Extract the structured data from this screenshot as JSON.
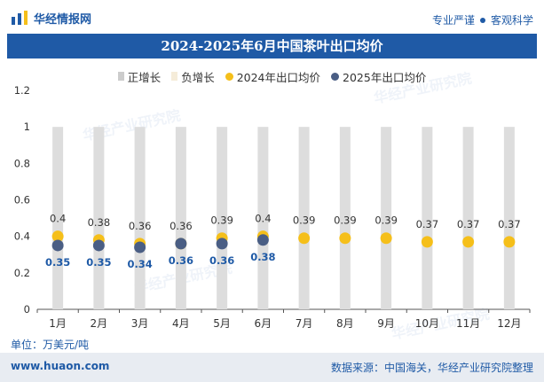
{
  "header": {
    "brand": "华经情报网",
    "tagline_left": "专业严谨",
    "tagline_right": "客观科学"
  },
  "watermark_text": "华经产业研究院",
  "footer": {
    "unit": "单位：万美元/吨",
    "site": "www.huaon.com",
    "source": "数据来源：中国海关，华经产业研究院整理"
  },
  "colors": {
    "brand_blue": "#1f5aa6",
    "bar_positive": "#dddddd",
    "bar_negative": "#f5ecd9",
    "dot_2024": "#f5bf1a",
    "dot_2025": "#4a5e84",
    "gridline": "#e6e6e6"
  },
  "chart_data": {
    "type": "bar",
    "title": "2024-2025年6月中国茶叶出口均价",
    "xlabel": "",
    "ylabel": "",
    "ylim": [
      0,
      1.2
    ],
    "yticks": [
      "0",
      "0.2",
      "0.4",
      "0.6",
      "0.8",
      "1",
      "1.2"
    ],
    "categories": [
      "1月",
      "2月",
      "3月",
      "4月",
      "5月",
      "6月",
      "7月",
      "8月",
      "9月",
      "10月",
      "11月",
      "12月"
    ],
    "legend": [
      {
        "name": "正增长",
        "kind": "bar",
        "color": "#cccccc"
      },
      {
        "name": "负增长",
        "kind": "bar",
        "color": "#f5ecd9"
      },
      {
        "name": "2024年出口均价",
        "kind": "dot",
        "color": "#f5bf1a"
      },
      {
        "name": "2025年出口均价",
        "kind": "dot",
        "color": "#4a5e84"
      }
    ],
    "series": [
      {
        "name": "正增长",
        "type": "bar",
        "values": [
          1,
          1,
          1,
          1,
          1,
          1,
          1,
          1,
          1,
          1,
          1,
          1
        ]
      },
      {
        "name": "负增长",
        "type": "bar",
        "values": [
          null,
          null,
          null,
          null,
          null,
          null,
          null,
          null,
          null,
          null,
          null,
          null
        ]
      },
      {
        "name": "2024年出口均价",
        "type": "scatter",
        "values": [
          0.4,
          0.38,
          0.36,
          0.36,
          0.39,
          0.4,
          0.39,
          0.39,
          0.39,
          0.37,
          0.37,
          0.37
        ]
      },
      {
        "name": "2025年出口均价",
        "type": "scatter",
        "values": [
          0.35,
          0.35,
          0.34,
          0.36,
          0.36,
          0.38,
          null,
          null,
          null,
          null,
          null,
          null
        ]
      }
    ]
  }
}
